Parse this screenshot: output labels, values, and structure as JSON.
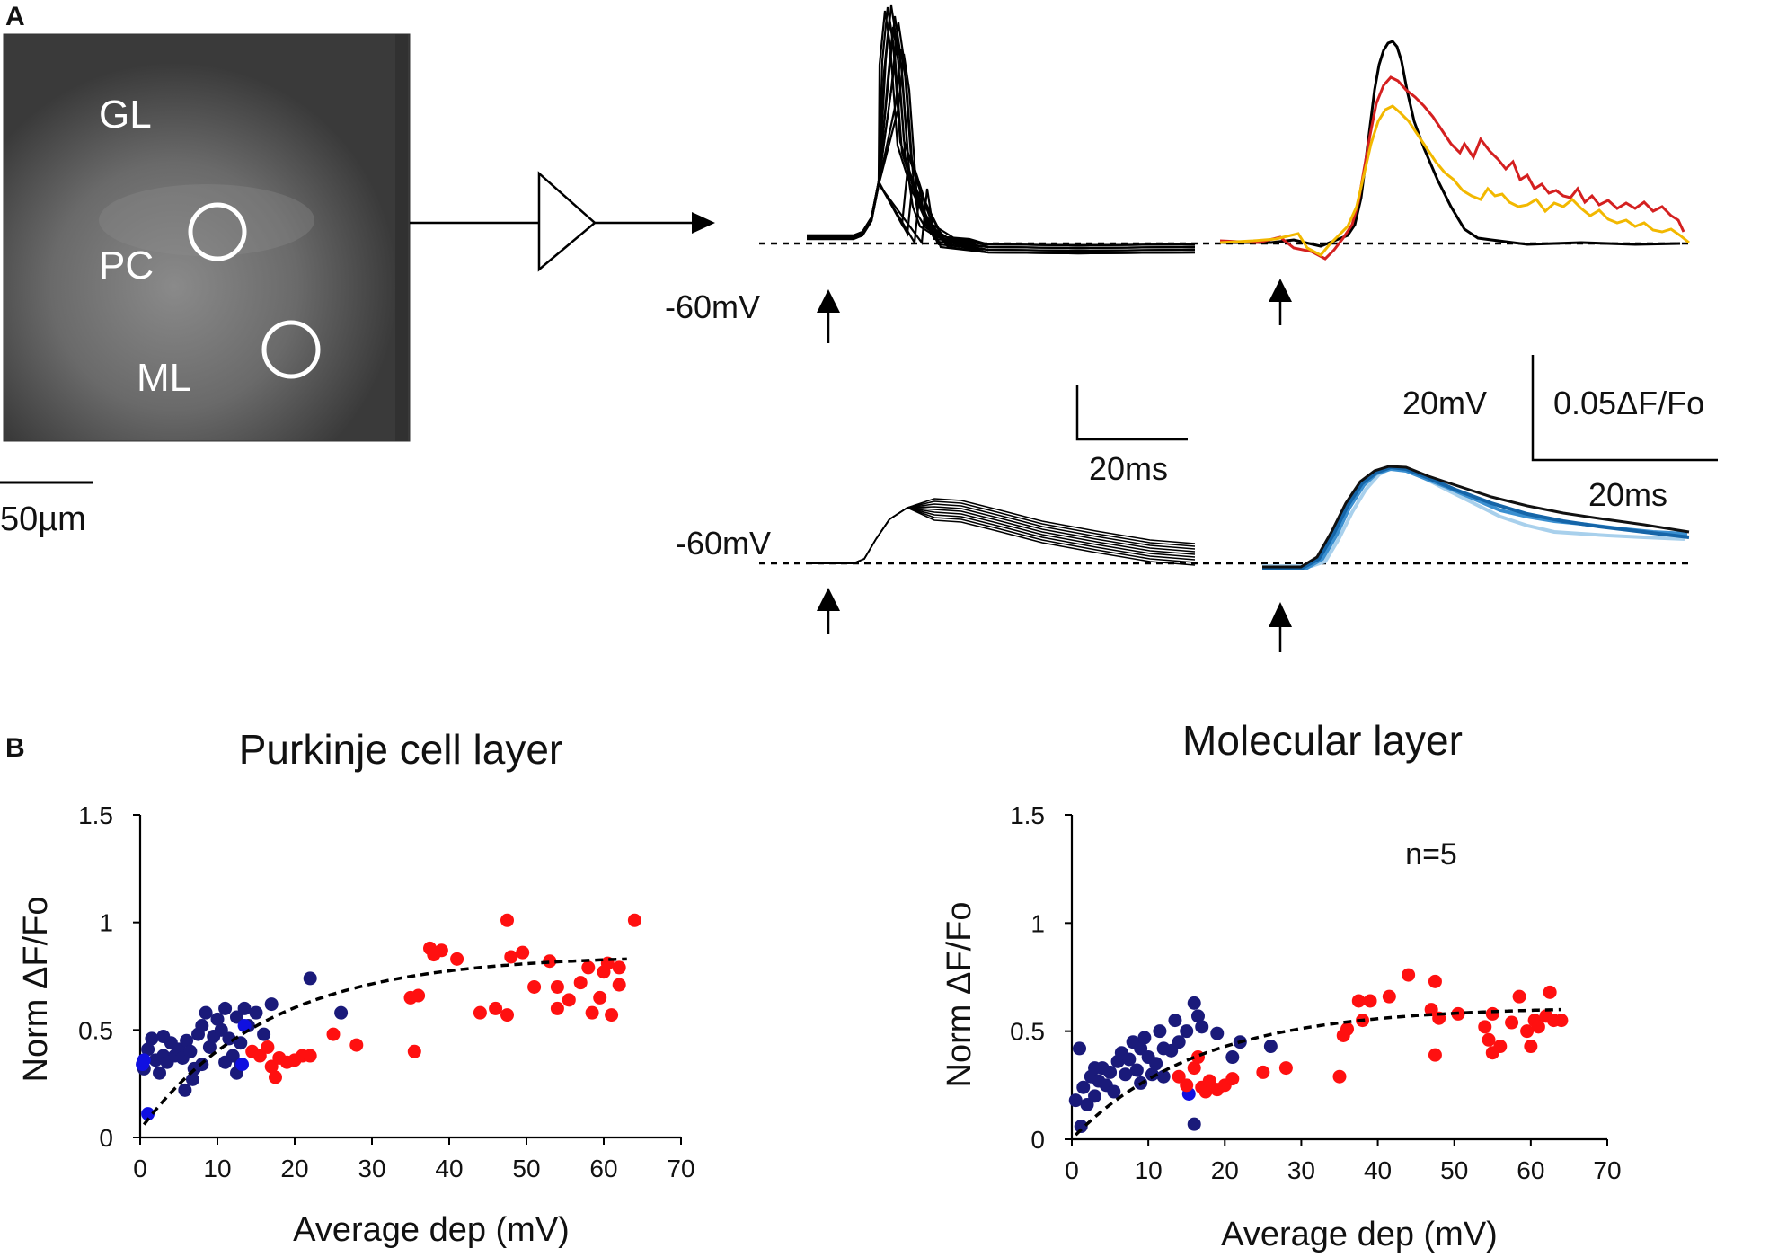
{
  "panel_a": {
    "label": "A",
    "image": {
      "regions": [
        "GL",
        "PC",
        "ML"
      ],
      "scale_bar": "50µm",
      "colors": {
        "bg": "#4a4a4a",
        "circle": "#ffffff"
      }
    },
    "traces": {
      "rest_label_top": "-60mV",
      "rest_label_bottom": "-60mV",
      "scale_left": {
        "time": "20ms"
      },
      "scale_right": {
        "voltage": "20mV",
        "fluor": "0.05ΔF/Fo",
        "time": "20ms"
      },
      "colors": {
        "black": "#000000",
        "red": "#d42020",
        "yellow": "#f2b800",
        "blue1": "#1565a8",
        "blue2": "#3a8fd0",
        "blue3": "#a8d0ec"
      }
    }
  },
  "panel_b": {
    "label": "B"
  },
  "chart_data": [
    {
      "type": "scatter",
      "title": "Purkinje cell layer",
      "xlabel": "Average dep (mV)",
      "ylabel": "Norm ΔF/Fo",
      "xlim": [
        0,
        70
      ],
      "ylim": [
        0,
        1.5
      ],
      "xticks": [
        "0",
        "10",
        "20",
        "30",
        "40",
        "50",
        "60",
        "70"
      ],
      "yticks": [
        "0",
        "0.5",
        "1",
        "1.5"
      ],
      "annotation": "",
      "fit": {
        "type": "exponential",
        "start": [
          0.5,
          0.06
        ],
        "end": [
          63,
          0.83
        ]
      },
      "series": [
        {
          "name": "navy",
          "color": "#1a1a7a",
          "points": [
            [
              0.5,
              0.32
            ],
            [
              1,
              0.41
            ],
            [
              1.5,
              0.46
            ],
            [
              2,
              0.36
            ],
            [
              2.5,
              0.3
            ],
            [
              3,
              0.38
            ],
            [
              3.5,
              0.35
            ],
            [
              4,
              0.44
            ],
            [
              4.5,
              0.38
            ],
            [
              5,
              0.41
            ],
            [
              5.5,
              0.37
            ],
            [
              6,
              0.45
            ],
            [
              6.5,
              0.4
            ],
            [
              7,
              0.32
            ],
            [
              7.5,
              0.48
            ],
            [
              8,
              0.52
            ],
            [
              8.5,
              0.58
            ],
            [
              9,
              0.42
            ],
            [
              9.5,
              0.47
            ],
            [
              10,
              0.55
            ],
            [
              10.5,
              0.5
            ],
            [
              11,
              0.6
            ],
            [
              11.5,
              0.46
            ],
            [
              12,
              0.38
            ],
            [
              12.5,
              0.56
            ],
            [
              13,
              0.44
            ],
            [
              13.5,
              0.6
            ],
            [
              14,
              0.52
            ],
            [
              15,
              0.58
            ],
            [
              16,
              0.48
            ],
            [
              17,
              0.62
            ],
            [
              5.8,
              0.22
            ],
            [
              6.8,
              0.27
            ],
            [
              12.5,
              0.3
            ],
            [
              13,
              0.34
            ],
            [
              22,
              0.74
            ],
            [
              26,
              0.58
            ],
            [
              8,
              0.34
            ],
            [
              3,
              0.47
            ],
            [
              11,
              0.35
            ]
          ]
        },
        {
          "name": "blue",
          "color": "#1010e0",
          "points": [
            [
              0.3,
              0.34
            ],
            [
              0.5,
              0.36
            ],
            [
              1,
              0.11
            ],
            [
              13.5,
              0.52
            ],
            [
              13.2,
              0.34
            ]
          ]
        },
        {
          "name": "red",
          "color": "#ff1010",
          "points": [
            [
              14.5,
              0.4
            ],
            [
              15.5,
              0.38
            ],
            [
              16.5,
              0.42
            ],
            [
              17,
              0.33
            ],
            [
              17.5,
              0.28
            ],
            [
              18,
              0.37
            ],
            [
              19,
              0.35
            ],
            [
              20,
              0.36
            ],
            [
              21,
              0.38
            ],
            [
              22,
              0.38
            ],
            [
              25,
              0.48
            ],
            [
              28,
              0.43
            ],
            [
              35,
              0.65
            ],
            [
              35.5,
              0.4
            ],
            [
              36,
              0.66
            ],
            [
              37.5,
              0.88
            ],
            [
              38,
              0.85
            ],
            [
              39,
              0.87
            ],
            [
              41,
              0.83
            ],
            [
              44,
              0.58
            ],
            [
              46,
              0.6
            ],
            [
              47.5,
              1.01
            ],
            [
              47.5,
              0.57
            ],
            [
              48,
              0.84
            ],
            [
              49.5,
              0.86
            ],
            [
              51,
              0.7
            ],
            [
              53,
              0.82
            ],
            [
              54,
              0.7
            ],
            [
              54,
              0.6
            ],
            [
              55.5,
              0.64
            ],
            [
              57,
              0.72
            ],
            [
              58,
              0.79
            ],
            [
              58.5,
              0.58
            ],
            [
              59.5,
              0.65
            ],
            [
              60,
              0.77
            ],
            [
              60.5,
              0.81
            ],
            [
              61,
              0.57
            ],
            [
              62,
              0.71
            ],
            [
              62,
              0.79
            ],
            [
              64,
              1.01
            ]
          ]
        }
      ]
    },
    {
      "type": "scatter",
      "title": "Molecular layer",
      "xlabel": "Average dep (mV)",
      "ylabel": "Norm ΔF/Fo",
      "xlim": [
        0,
        70
      ],
      "ylim": [
        0,
        1.5
      ],
      "xticks": [
        "0",
        "10",
        "20",
        "30",
        "40",
        "50",
        "60",
        "70"
      ],
      "yticks": [
        "0",
        "0.5",
        "1",
        "1.5"
      ],
      "annotation": "n=5",
      "fit": {
        "type": "exponential",
        "start": [
          0.5,
          0.02
        ],
        "end": [
          64,
          0.6
        ]
      },
      "series": [
        {
          "name": "navy",
          "color": "#1a1a7a",
          "points": [
            [
              0.5,
              0.18
            ],
            [
              1,
              0.42
            ],
            [
              1.5,
              0.24
            ],
            [
              2,
              0.16
            ],
            [
              2.5,
              0.29
            ],
            [
              3,
              0.2
            ],
            [
              3.5,
              0.27
            ],
            [
              4,
              0.33
            ],
            [
              4.5,
              0.25
            ],
            [
              5,
              0.31
            ],
            [
              5.5,
              0.22
            ],
            [
              6,
              0.36
            ],
            [
              6.5,
              0.4
            ],
            [
              7,
              0.3
            ],
            [
              7.5,
              0.37
            ],
            [
              8,
              0.45
            ],
            [
              8.5,
              0.32
            ],
            [
              9,
              0.42
            ],
            [
              9.5,
              0.47
            ],
            [
              10,
              0.38
            ],
            [
              10.5,
              0.3
            ],
            [
              11,
              0.35
            ],
            [
              11.5,
              0.5
            ],
            [
              12,
              0.29
            ],
            [
              13,
              0.41
            ],
            [
              13.5,
              0.55
            ],
            [
              14,
              0.45
            ],
            [
              15,
              0.5
            ],
            [
              16,
              0.63
            ],
            [
              16.5,
              0.57
            ],
            [
              17,
              0.52
            ],
            [
              19,
              0.49
            ],
            [
              21,
              0.38
            ],
            [
              22,
              0.45
            ],
            [
              16,
              0.07
            ],
            [
              1.2,
              0.06
            ],
            [
              9,
              0.26
            ],
            [
              3,
              0.33
            ],
            [
              26,
              0.43
            ],
            [
              12,
              0.42
            ]
          ]
        },
        {
          "name": "blue",
          "color": "#1010e0",
          "points": [
            [
              15.3,
              0.21
            ]
          ]
        },
        {
          "name": "red",
          "color": "#ff1010",
          "points": [
            [
              14,
              0.29
            ],
            [
              15,
              0.25
            ],
            [
              16,
              0.33
            ],
            [
              16.5,
              0.38
            ],
            [
              17,
              0.24
            ],
            [
              17.5,
              0.22
            ],
            [
              18,
              0.27
            ],
            [
              19,
              0.23
            ],
            [
              20,
              0.25
            ],
            [
              21,
              0.28
            ],
            [
              25,
              0.31
            ],
            [
              28,
              0.33
            ],
            [
              35,
              0.29
            ],
            [
              35.5,
              0.48
            ],
            [
              36,
              0.51
            ],
            [
              37.5,
              0.64
            ],
            [
              38,
              0.55
            ],
            [
              39,
              0.64
            ],
            [
              41.5,
              0.66
            ],
            [
              44,
              0.76
            ],
            [
              47,
              0.6
            ],
            [
              47.5,
              0.73
            ],
            [
              47.5,
              0.39
            ],
            [
              48,
              0.56
            ],
            [
              50.5,
              0.58
            ],
            [
              54,
              0.52
            ],
            [
              54.5,
              0.46
            ],
            [
              55,
              0.58
            ],
            [
              55,
              0.4
            ],
            [
              56,
              0.43
            ],
            [
              57.5,
              0.54
            ],
            [
              58.5,
              0.66
            ],
            [
              59.5,
              0.5
            ],
            [
              60,
              0.43
            ],
            [
              60.5,
              0.55
            ],
            [
              61,
              0.52
            ],
            [
              62,
              0.57
            ],
            [
              62.5,
              0.68
            ],
            [
              63,
              0.55
            ],
            [
              64,
              0.55
            ]
          ]
        }
      ]
    }
  ]
}
